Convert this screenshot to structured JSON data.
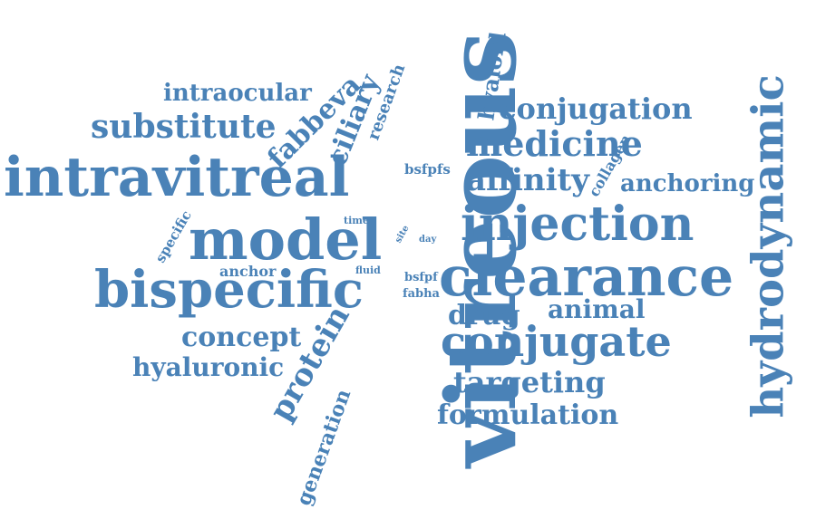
{
  "color": "#4a82b7",
  "words": {
    "vitreous": "vitreous",
    "intravitreal": "intravitreal",
    "model": "model",
    "clearance": "clearance",
    "injection": "injection",
    "bispecific": "bispecific",
    "hydrodynamic": "hydrodynamic",
    "conjugate": "conjugate",
    "substitute": "substitute",
    "medicine": "medicine",
    "affinity": "affinity",
    "conjugation": "conjugation",
    "protein": "protein",
    "concept": "concept",
    "targeting": "targeting",
    "formulation": "formulation",
    "intraocular": "intraocular",
    "fabbeva": "fabbeva",
    "ciliary": "ciliary",
    "hyaloid": "hyaloid",
    "anchoring": "anchoring",
    "drug": "drug",
    "animal": "animal",
    "hyaluronic": "hyaluronic",
    "generation": "generation",
    "research": "research",
    "collagen": "collagen",
    "bsfpfs": "bsfpfs",
    "anchor": "anchor",
    "specific": "specific",
    "time": "time",
    "site": "site",
    "day": "day",
    "fluid": "fluid",
    "bsfpf": "bsfpf",
    "fabha": "fabha"
  }
}
